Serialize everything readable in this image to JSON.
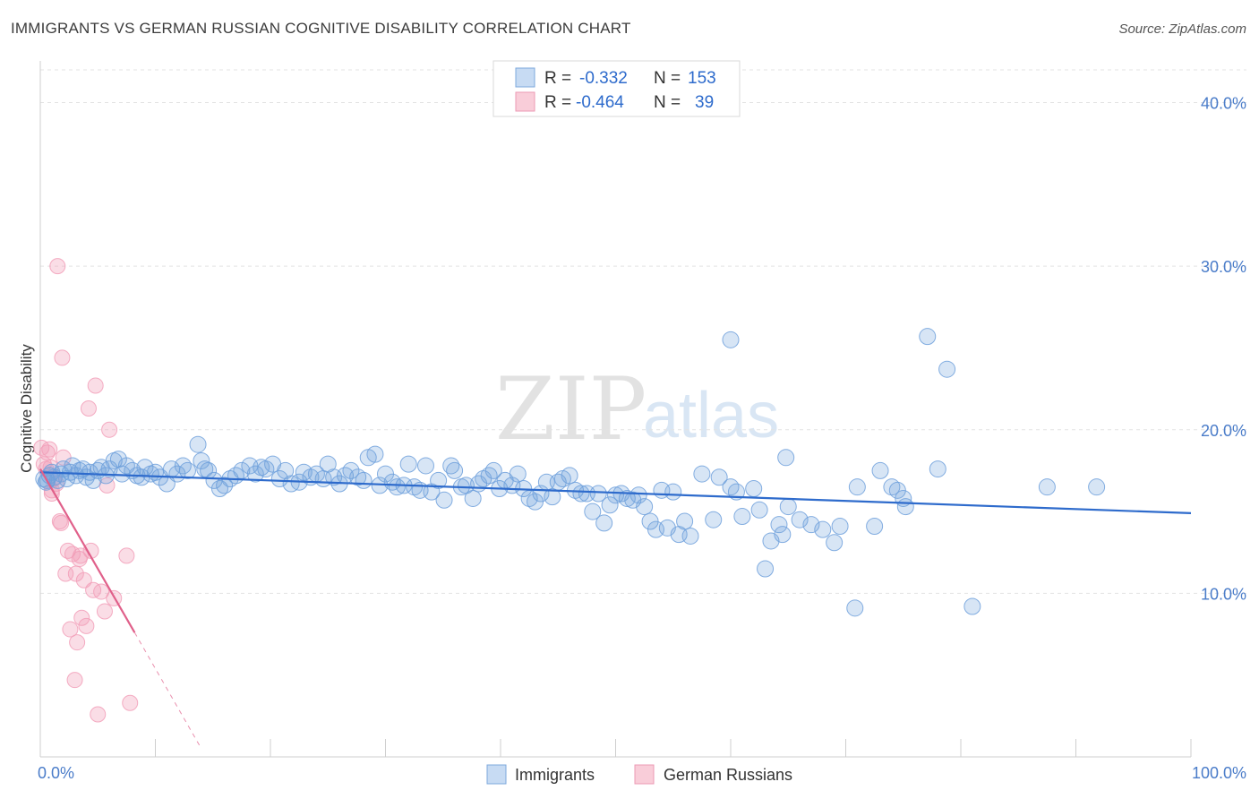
{
  "header": {
    "title": "IMMIGRANTS VS GERMAN RUSSIAN COGNITIVE DISABILITY CORRELATION CHART",
    "source": "Source: ZipAtlas.com"
  },
  "watermark": {
    "zip": "ZIP",
    "atlas": "atlas"
  },
  "legend_top": {
    "r_label": "R =",
    "n_label": "N =",
    "items": [
      {
        "r": "-0.332",
        "n": "153"
      },
      {
        "r": "-0.464",
        "n": "39"
      }
    ]
  },
  "chart_data": {
    "type": "scatter",
    "xlabel": "",
    "ylabel": "Cognitive Disability",
    "xlim": [
      0,
      100
    ],
    "ylim": [
      0,
      42
    ],
    "x_tick_labels": [
      "0.0%",
      "100.0%"
    ],
    "y_ticks": [
      10,
      20,
      30,
      40
    ],
    "y_tick_labels": [
      "10.0%",
      "20.0%",
      "30.0%",
      "40.0%"
    ],
    "grid": true,
    "legend_position": "top-center",
    "colors": {
      "immigrants": "#6fa0dc",
      "german_russians": "#f29fb8",
      "immigrants_line": "#2e6bcc",
      "german_russians_line": "#e0608a"
    },
    "series": [
      {
        "name": "Immigrants",
        "trend": {
          "x": [
            0,
            100
          ],
          "y": [
            17.4,
            14.9
          ]
        },
        "points": [
          [
            0.3,
            17.0
          ],
          [
            0.5,
            16.8
          ],
          [
            0.8,
            17.2
          ],
          [
            1.0,
            17.4
          ],
          [
            1.2,
            17.1
          ],
          [
            1.5,
            16.9
          ],
          [
            1.8,
            17.3
          ],
          [
            2.0,
            17.6
          ],
          [
            2.3,
            17.0
          ],
          [
            2.6,
            17.4
          ],
          [
            2.8,
            17.8
          ],
          [
            3.1,
            17.2
          ],
          [
            3.4,
            17.5
          ],
          [
            3.7,
            17.6
          ],
          [
            4.0,
            17.1
          ],
          [
            4.3,
            17.4
          ],
          [
            4.6,
            16.9
          ],
          [
            5.0,
            17.5
          ],
          [
            5.3,
            17.7
          ],
          [
            5.7,
            17.2
          ],
          [
            6.0,
            17.6
          ],
          [
            6.4,
            18.1
          ],
          [
            6.8,
            18.2
          ],
          [
            7.1,
            17.3
          ],
          [
            7.5,
            17.8
          ],
          [
            8.0,
            17.5
          ],
          [
            8.4,
            17.2
          ],
          [
            8.8,
            17.1
          ],
          [
            9.1,
            17.7
          ],
          [
            9.6,
            17.3
          ],
          [
            10.0,
            17.4
          ],
          [
            10.4,
            17.1
          ],
          [
            11.0,
            16.7
          ],
          [
            11.4,
            17.6
          ],
          [
            11.9,
            17.3
          ],
          [
            12.4,
            17.8
          ],
          [
            12.8,
            17.5
          ],
          [
            13.7,
            19.1
          ],
          [
            14.0,
            18.1
          ],
          [
            14.3,
            17.6
          ],
          [
            14.6,
            17.5
          ],
          [
            15.1,
            16.9
          ],
          [
            15.6,
            16.4
          ],
          [
            16.0,
            16.6
          ],
          [
            16.5,
            17.0
          ],
          [
            17.0,
            17.2
          ],
          [
            17.5,
            17.5
          ],
          [
            18.2,
            17.8
          ],
          [
            18.7,
            17.3
          ],
          [
            19.2,
            17.7
          ],
          [
            19.6,
            17.6
          ],
          [
            20.2,
            17.9
          ],
          [
            20.8,
            17.0
          ],
          [
            21.3,
            17.5
          ],
          [
            21.8,
            16.7
          ],
          [
            22.5,
            16.8
          ],
          [
            22.9,
            17.4
          ],
          [
            23.5,
            17.1
          ],
          [
            24.0,
            17.3
          ],
          [
            24.6,
            17.0
          ],
          [
            25.0,
            17.9
          ],
          [
            25.5,
            17.1
          ],
          [
            26.0,
            16.7
          ],
          [
            26.5,
            17.2
          ],
          [
            27.0,
            17.5
          ],
          [
            27.6,
            17.1
          ],
          [
            28.1,
            16.9
          ],
          [
            28.5,
            18.3
          ],
          [
            29.1,
            18.5
          ],
          [
            29.5,
            16.6
          ],
          [
            30.0,
            17.3
          ],
          [
            30.6,
            16.8
          ],
          [
            31.0,
            16.5
          ],
          [
            31.6,
            16.6
          ],
          [
            32.0,
            17.9
          ],
          [
            32.5,
            16.5
          ],
          [
            33.0,
            16.3
          ],
          [
            33.5,
            17.8
          ],
          [
            34.0,
            16.2
          ],
          [
            34.6,
            16.9
          ],
          [
            35.1,
            15.7
          ],
          [
            35.7,
            17.8
          ],
          [
            36.0,
            17.5
          ],
          [
            36.6,
            16.5
          ],
          [
            37.0,
            16.6
          ],
          [
            37.6,
            15.8
          ],
          [
            38.1,
            16.7
          ],
          [
            38.5,
            17.0
          ],
          [
            39.0,
            17.2
          ],
          [
            39.4,
            17.5
          ],
          [
            39.9,
            16.4
          ],
          [
            40.4,
            16.9
          ],
          [
            41.0,
            16.6
          ],
          [
            41.5,
            17.3
          ],
          [
            42.0,
            16.4
          ],
          [
            42.5,
            15.8
          ],
          [
            43.0,
            15.6
          ],
          [
            43.5,
            16.1
          ],
          [
            44.0,
            16.8
          ],
          [
            44.5,
            15.9
          ],
          [
            45.0,
            16.8
          ],
          [
            45.4,
            17.0
          ],
          [
            46.0,
            17.2
          ],
          [
            46.5,
            16.3
          ],
          [
            47.0,
            16.1
          ],
          [
            47.5,
            16.1
          ],
          [
            48.0,
            15.0
          ],
          [
            48.5,
            16.1
          ],
          [
            49.0,
            14.3
          ],
          [
            49.5,
            15.4
          ],
          [
            50.0,
            16.0
          ],
          [
            50.5,
            16.1
          ],
          [
            51.0,
            15.8
          ],
          [
            51.5,
            15.7
          ],
          [
            52.0,
            16.0
          ],
          [
            52.5,
            15.3
          ],
          [
            53.0,
            14.4
          ],
          [
            53.5,
            13.9
          ],
          [
            54.0,
            16.3
          ],
          [
            54.5,
            14.0
          ],
          [
            55.0,
            16.2
          ],
          [
            55.5,
            13.6
          ],
          [
            56.0,
            14.4
          ],
          [
            56.5,
            13.5
          ],
          [
            57.5,
            17.3
          ],
          [
            58.5,
            14.5
          ],
          [
            59.0,
            17.1
          ],
          [
            60.0,
            16.5
          ],
          [
            60.5,
            16.2
          ],
          [
            61.0,
            14.7
          ],
          [
            62.0,
            16.4
          ],
          [
            62.5,
            15.1
          ],
          [
            63.0,
            11.5
          ],
          [
            63.5,
            13.2
          ],
          [
            64.2,
            14.2
          ],
          [
            64.5,
            13.6
          ],
          [
            65.0,
            15.3
          ],
          [
            66.0,
            14.5
          ],
          [
            67.0,
            14.2
          ],
          [
            68.0,
            13.9
          ],
          [
            69.0,
            13.1
          ],
          [
            69.5,
            14.1
          ],
          [
            71.0,
            16.5
          ],
          [
            72.5,
            14.1
          ],
          [
            73.0,
            17.5
          ],
          [
            74.0,
            16.5
          ],
          [
            74.5,
            16.3
          ],
          [
            75.0,
            15.8
          ],
          [
            75.2,
            15.3
          ],
          [
            78.0,
            17.6
          ],
          [
            60.0,
            25.5
          ],
          [
            77.1,
            25.7
          ],
          [
            78.8,
            23.7
          ],
          [
            64.8,
            18.3
          ],
          [
            70.8,
            9.1
          ],
          [
            81.0,
            9.2
          ],
          [
            87.5,
            16.5
          ],
          [
            91.8,
            16.5
          ],
          [
            0.6,
            16.9
          ]
        ]
      },
      {
        "name": "German Russians",
        "trend": {
          "x": [
            0,
            8.2
          ],
          "y": [
            17.6,
            7.6
          ],
          "dashed_to": {
            "x": 14,
            "y": 0.5
          }
        },
        "points": [
          [
            0.1,
            18.9
          ],
          [
            0.3,
            17.9
          ],
          [
            0.5,
            17.6
          ],
          [
            0.6,
            18.6
          ],
          [
            0.8,
            18.8
          ],
          [
            1.0,
            16.3
          ],
          [
            1.2,
            17.0
          ],
          [
            1.5,
            30.0
          ],
          [
            1.7,
            14.4
          ],
          [
            1.9,
            24.4
          ],
          [
            2.0,
            18.3
          ],
          [
            2.2,
            11.2
          ],
          [
            2.4,
            12.6
          ],
          [
            2.6,
            7.8
          ],
          [
            2.8,
            12.4
          ],
          [
            3.0,
            4.7
          ],
          [
            3.1,
            11.2
          ],
          [
            3.2,
            7.0
          ],
          [
            3.4,
            12.1
          ],
          [
            3.6,
            8.5
          ],
          [
            3.8,
            10.8
          ],
          [
            4.0,
            8.0
          ],
          [
            4.2,
            21.3
          ],
          [
            4.4,
            12.6
          ],
          [
            4.6,
            10.2
          ],
          [
            4.8,
            22.7
          ],
          [
            5.0,
            2.6
          ],
          [
            5.3,
            10.1
          ],
          [
            5.6,
            8.9
          ],
          [
            5.8,
            16.6
          ],
          [
            6.0,
            20.0
          ],
          [
            6.4,
            9.7
          ],
          [
            7.5,
            12.3
          ],
          [
            7.8,
            3.3
          ],
          [
            1.0,
            16.1
          ],
          [
            1.4,
            16.7
          ],
          [
            1.8,
            14.3
          ],
          [
            3.5,
            12.3
          ],
          [
            0.9,
            17.7
          ]
        ]
      }
    ]
  },
  "legend_bottom": {
    "items": [
      "Immigrants",
      "German Russians"
    ]
  }
}
